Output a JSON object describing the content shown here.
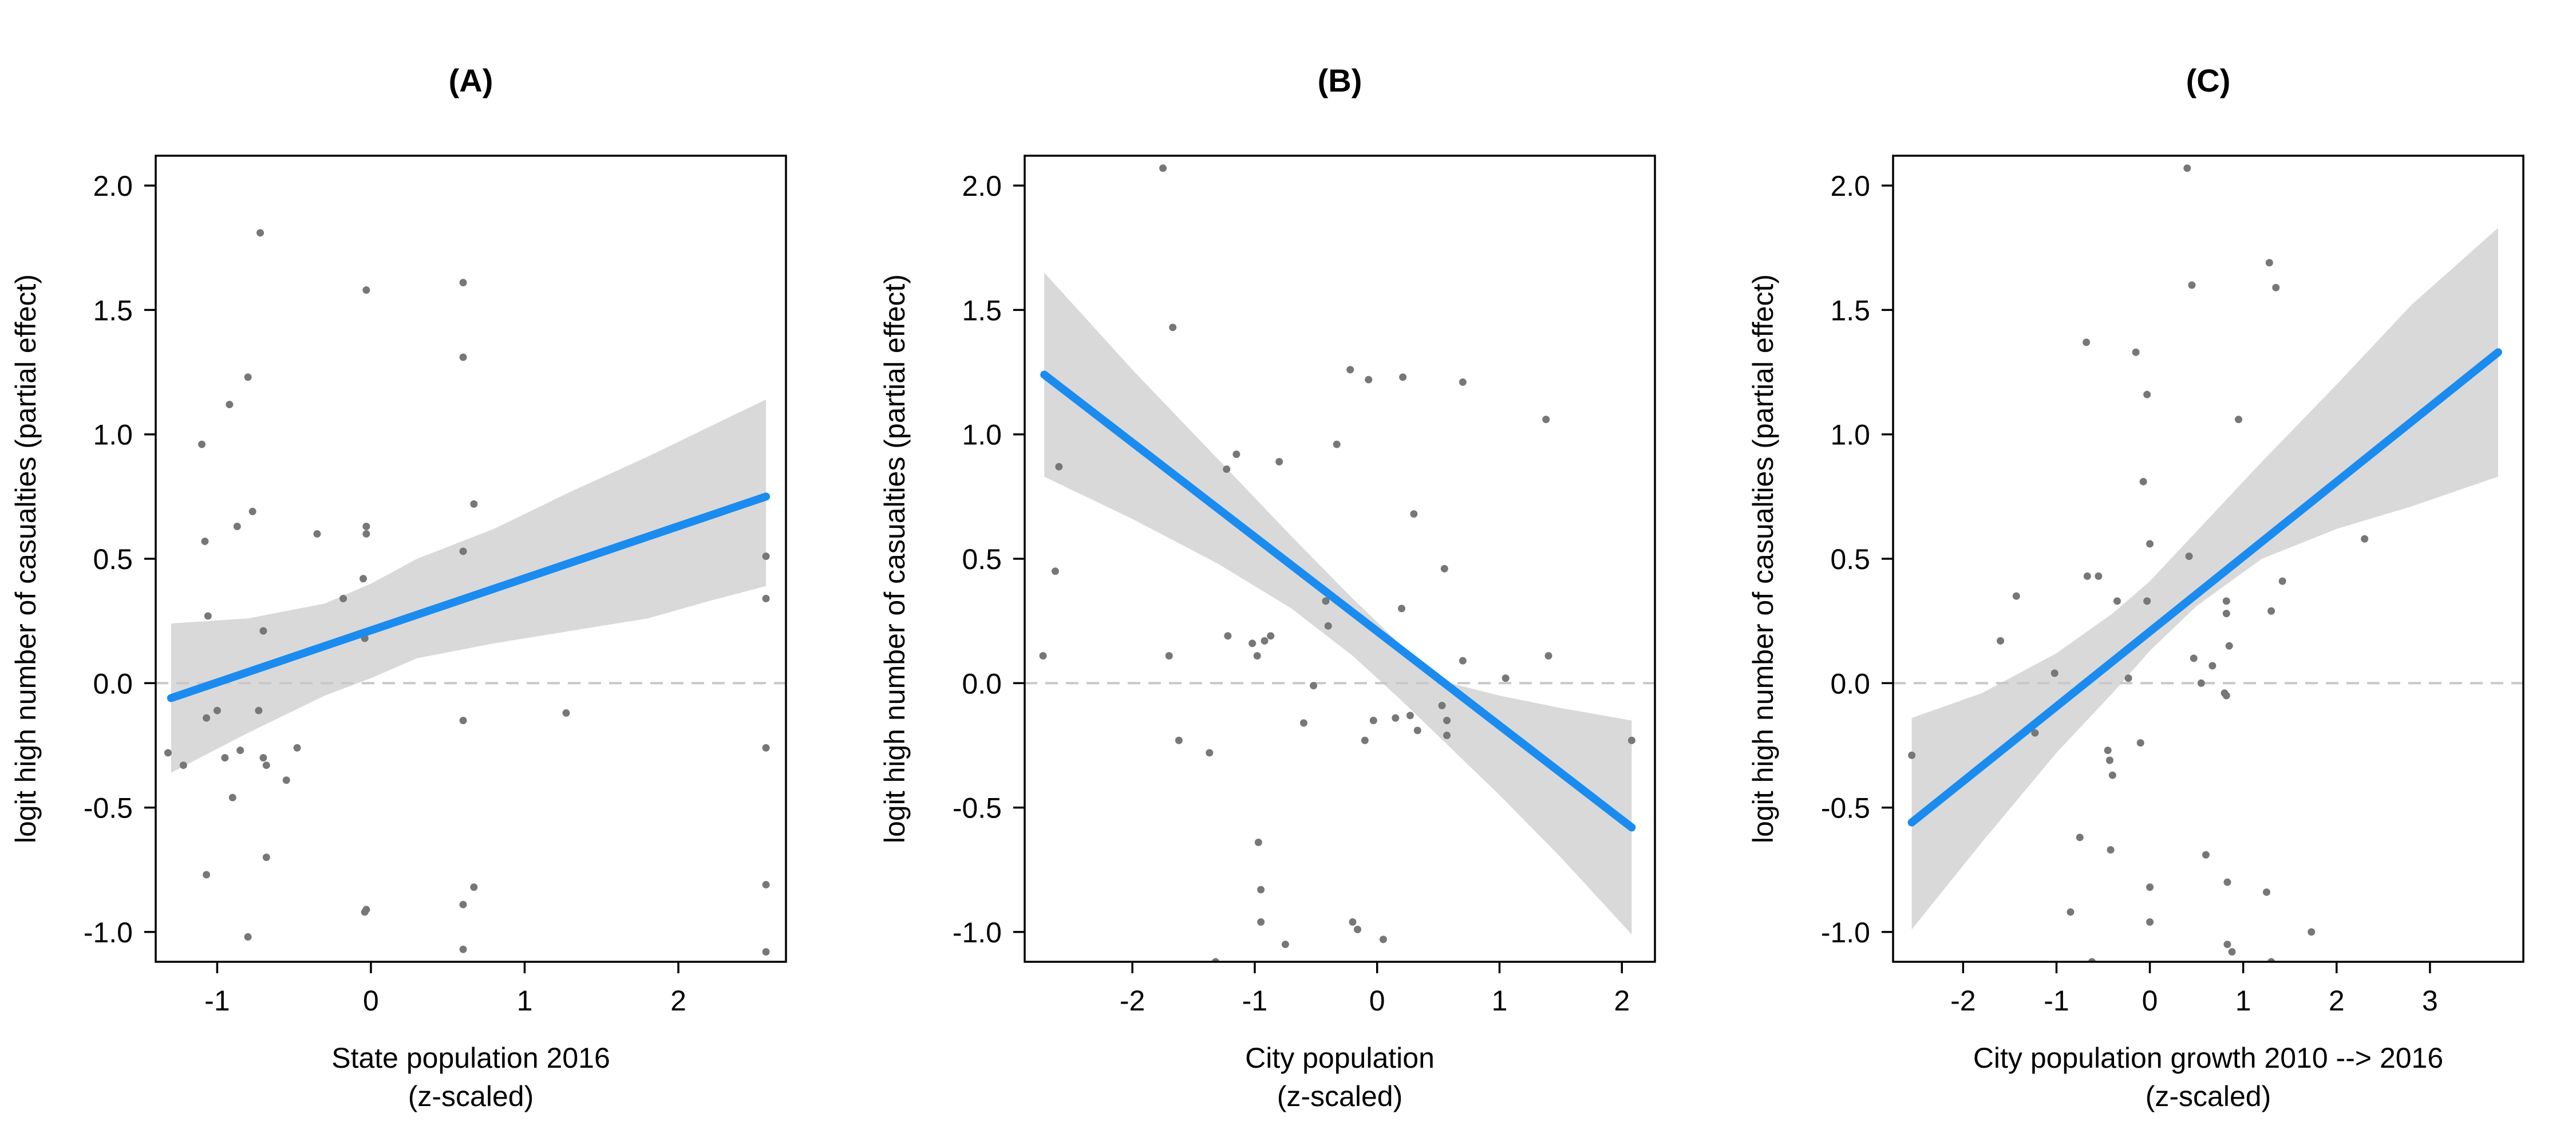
{
  "colors": {
    "line": "#1a8cf0",
    "ribbon": "#d9d9d9",
    "points": "#777777",
    "zero_line": "#c8c8c8",
    "frame": "#000000"
  },
  "chart_data": [
    {
      "type": "scatter",
      "title": "(A)",
      "xlabel": [
        "State population 2016",
        "(z-scaled)"
      ],
      "ylabel": "logit high number of casualties (partial effect)",
      "xlim": [
        -1.4,
        2.7
      ],
      "ylim": [
        -1.12,
        2.12
      ],
      "xticks": [
        -1,
        0,
        1,
        2
      ],
      "yticks": [
        -1.0,
        -0.5,
        0.0,
        0.5,
        1.0,
        1.5,
        2.0
      ],
      "xtick_labels": [
        "-1",
        "0",
        "1",
        "2"
      ],
      "ytick_labels": [
        "-1.0",
        "-0.5",
        "0.0",
        "0.5",
        "1.0",
        "1.5",
        "2.0"
      ],
      "reference_line_y": 0,
      "fit": {
        "x": [
          -1.3,
          2.57
        ],
        "y": [
          -0.06,
          0.75
        ]
      },
      "ribbon": {
        "x": [
          -1.3,
          -0.8,
          -0.3,
          0.0,
          0.3,
          0.8,
          1.3,
          1.8,
          2.2,
          2.57
        ],
        "lower": [
          -0.36,
          -0.2,
          -0.05,
          0.02,
          0.1,
          0.16,
          0.21,
          0.26,
          0.33,
          0.39
        ],
        "upper": [
          0.24,
          0.26,
          0.32,
          0.4,
          0.5,
          0.62,
          0.77,
          0.91,
          1.03,
          1.14
        ]
      },
      "points": [
        [
          -1.32,
          -0.28
        ],
        [
          -1.22,
          -0.33
        ],
        [
          -1.1,
          0.96
        ],
        [
          -1.08,
          0.57
        ],
        [
          -1.07,
          -0.14
        ],
        [
          -1.06,
          0.27
        ],
        [
          -1.07,
          -0.77
        ],
        [
          -1.0,
          -0.11
        ],
        [
          -0.95,
          -0.3
        ],
        [
          -0.92,
          1.12
        ],
        [
          -0.9,
          -0.46
        ],
        [
          -0.87,
          0.63
        ],
        [
          -0.85,
          -0.27
        ],
        [
          -0.8,
          1.23
        ],
        [
          -0.8,
          -1.02
        ],
        [
          -0.77,
          0.69
        ],
        [
          -0.73,
          -0.11
        ],
        [
          -0.72,
          1.81
        ],
        [
          -0.7,
          0.21
        ],
        [
          -0.7,
          -0.3
        ],
        [
          -0.68,
          -0.33
        ],
        [
          -0.68,
          -0.7
        ],
        [
          -0.55,
          -0.39
        ],
        [
          -0.48,
          -0.26
        ],
        [
          -0.35,
          0.6
        ],
        [
          -0.18,
          0.34
        ],
        [
          -0.05,
          0.42
        ],
        [
          -0.04,
          0.18
        ],
        [
          -0.03,
          0.63
        ],
        [
          -0.03,
          0.6
        ],
        [
          -0.04,
          -0.92
        ],
        [
          -0.03,
          -0.91
        ],
        [
          -0.03,
          1.58
        ],
        [
          0.6,
          1.61
        ],
        [
          0.6,
          1.31
        ],
        [
          0.6,
          0.53
        ],
        [
          0.6,
          -0.15
        ],
        [
          0.6,
          -0.89
        ],
        [
          0.6,
          -1.07
        ],
        [
          0.67,
          0.72
        ],
        [
          0.67,
          -0.82
        ],
        [
          1.27,
          -0.12
        ],
        [
          2.57,
          0.51
        ],
        [
          2.57,
          0.34
        ],
        [
          2.57,
          -0.26
        ],
        [
          2.57,
          -0.81
        ],
        [
          2.57,
          -1.08
        ]
      ]
    },
    {
      "type": "scatter",
      "title": "(B)",
      "xlabel": [
        "City population",
        "(z-scaled)"
      ],
      "ylabel": "logit high number of casualties (partial effect)",
      "xlim": [
        -2.88,
        2.27
      ],
      "ylim": [
        -1.12,
        2.12
      ],
      "xticks": [
        -2,
        -1,
        0,
        1,
        2
      ],
      "yticks": [
        -1.0,
        -0.5,
        0.0,
        0.5,
        1.0,
        1.5,
        2.0
      ],
      "xtick_labels": [
        "-2",
        "-1",
        "0",
        "1",
        "2"
      ],
      "ytick_labels": [
        "-1.0",
        "-0.5",
        "0.0",
        "0.5",
        "1.0",
        "1.5",
        "2.0"
      ],
      "reference_line_y": 0,
      "fit": {
        "x": [
          -2.72,
          2.08
        ],
        "y": [
          1.24,
          -0.58
        ]
      },
      "ribbon": {
        "x": [
          -2.72,
          -2.0,
          -1.3,
          -0.7,
          -0.2,
          0.2,
          0.6,
          1.0,
          1.5,
          2.08
        ],
        "lower": [
          0.83,
          0.66,
          0.48,
          0.3,
          0.11,
          -0.07,
          -0.26,
          -0.45,
          -0.7,
          -1.01
        ],
        "upper": [
          1.65,
          1.26,
          0.9,
          0.59,
          0.34,
          0.15,
          -0.0,
          -0.05,
          -0.1,
          -0.15
        ]
      },
      "points": [
        [
          -2.73,
          0.11
        ],
        [
          -2.63,
          0.45
        ],
        [
          -2.6,
          0.87
        ],
        [
          -1.75,
          2.07
        ],
        [
          -1.7,
          0.11
        ],
        [
          -1.67,
          1.43
        ],
        [
          -1.62,
          -0.23
        ],
        [
          -1.37,
          -0.28
        ],
        [
          -1.23,
          0.86
        ],
        [
          -1.22,
          0.19
        ],
        [
          -1.15,
          0.92
        ],
        [
          -1.02,
          0.16
        ],
        [
          -0.98,
          0.11
        ],
        [
          -0.97,
          -0.64
        ],
        [
          -0.95,
          -0.83
        ],
        [
          -0.95,
          -0.96
        ],
        [
          -0.92,
          0.17
        ],
        [
          -0.87,
          0.19
        ],
        [
          -0.8,
          0.89
        ],
        [
          -0.75,
          -1.05
        ],
        [
          -0.6,
          -0.16
        ],
        [
          -0.52,
          -0.01
        ],
        [
          -0.42,
          0.33
        ],
        [
          -0.4,
          0.23
        ],
        [
          -0.33,
          0.96
        ],
        [
          -0.22,
          1.26
        ],
        [
          -0.2,
          -0.96
        ],
        [
          -0.16,
          -0.99
        ],
        [
          -0.1,
          -0.23
        ],
        [
          -0.07,
          1.22
        ],
        [
          -0.03,
          -0.15
        ],
        [
          0.05,
          -1.03
        ],
        [
          0.15,
          -0.14
        ],
        [
          0.2,
          0.3
        ],
        [
          0.21,
          1.23
        ],
        [
          0.27,
          -0.13
        ],
        [
          0.33,
          -0.19
        ],
        [
          0.3,
          0.68
        ],
        [
          0.53,
          -0.09
        ],
        [
          0.57,
          -0.15
        ],
        [
          0.55,
          0.46
        ],
        [
          0.57,
          -0.21
        ],
        [
          0.7,
          0.09
        ],
        [
          0.7,
          1.21
        ],
        [
          1.05,
          0.02
        ],
        [
          1.38,
          1.06
        ],
        [
          1.4,
          0.11
        ],
        [
          2.08,
          -0.23
        ],
        [
          -1.32,
          -1.12
        ]
      ]
    },
    {
      "type": "scatter",
      "title": "(C)",
      "xlabel": [
        "City population growth 2010 --> 2016",
        "(z-scaled)"
      ],
      "ylabel": "logit high number of casualties (partial effect)",
      "xlim": [
        -2.75,
        4.0
      ],
      "ylim": [
        -1.12,
        2.12
      ],
      "xticks": [
        -2,
        -1,
        0,
        1,
        2,
        3
      ],
      "yticks": [
        -1.0,
        -0.5,
        0.0,
        0.5,
        1.0,
        1.5,
        2.0
      ],
      "xtick_labels": [
        "-2",
        "-1",
        "0",
        "1",
        "2",
        "3"
      ],
      "ytick_labels": [
        "-1.0",
        "-0.5",
        "0.0",
        "0.5",
        "1.0",
        "1.5",
        "2.0"
      ],
      "reference_line_y": 0,
      "fit": {
        "x": [
          -2.55,
          3.73
        ],
        "y": [
          -0.56,
          1.33
        ]
      },
      "ribbon": {
        "x": [
          -2.55,
          -1.8,
          -1.0,
          -0.4,
          0.0,
          0.5,
          1.2,
          2.0,
          2.8,
          3.73
        ],
        "lower": [
          -0.99,
          -0.64,
          -0.28,
          -0.04,
          0.13,
          0.31,
          0.5,
          0.62,
          0.71,
          0.83
        ],
        "upper": [
          -0.14,
          -0.04,
          0.12,
          0.28,
          0.41,
          0.61,
          0.89,
          1.2,
          1.52,
          1.83
        ]
      },
      "points": [
        [
          -2.55,
          -0.29
        ],
        [
          -1.6,
          0.17
        ],
        [
          -1.43,
          0.35
        ],
        [
          -1.23,
          -0.2
        ],
        [
          -1.02,
          0.04
        ],
        [
          -0.75,
          -0.62
        ],
        [
          -0.68,
          1.37
        ],
        [
          -0.67,
          0.43
        ],
        [
          -0.55,
          0.43
        ],
        [
          -0.45,
          -0.27
        ],
        [
          -0.43,
          -0.31
        ],
        [
          -0.42,
          -0.67
        ],
        [
          -0.4,
          -0.37
        ],
        [
          -0.35,
          0.33
        ],
        [
          -0.23,
          0.02
        ],
        [
          -0.15,
          1.33
        ],
        [
          -0.1,
          -0.24
        ],
        [
          -0.07,
          0.81
        ],
        [
          -0.03,
          1.16
        ],
        [
          0.0,
          0.56
        ],
        [
          -0.03,
          0.33
        ],
        [
          0.0,
          -0.82
        ],
        [
          0.0,
          -0.96
        ],
        [
          0.4,
          2.07
        ],
        [
          0.45,
          1.6
        ],
        [
          0.42,
          0.51
        ],
        [
          0.47,
          0.1
        ],
        [
          0.55,
          -0.0
        ],
        [
          0.6,
          -0.69
        ],
        [
          0.67,
          0.07
        ],
        [
          0.82,
          0.33
        ],
        [
          0.82,
          0.28
        ],
        [
          0.8,
          -0.04
        ],
        [
          0.82,
          -0.05
        ],
        [
          0.83,
          -0.8
        ],
        [
          0.83,
          -1.05
        ],
        [
          0.85,
          0.15
        ],
        [
          0.88,
          -1.08
        ],
        [
          0.95,
          1.06
        ],
        [
          1.28,
          1.69
        ],
        [
          1.35,
          1.59
        ],
        [
          1.3,
          0.29
        ],
        [
          1.42,
          0.41
        ],
        [
          1.25,
          -0.84
        ],
        [
          1.3,
          -1.12
        ],
        [
          1.73,
          -1.0
        ],
        [
          2.3,
          0.58
        ],
        [
          -0.85,
          -0.92
        ],
        [
          -0.62,
          -1.12
        ]
      ]
    }
  ]
}
